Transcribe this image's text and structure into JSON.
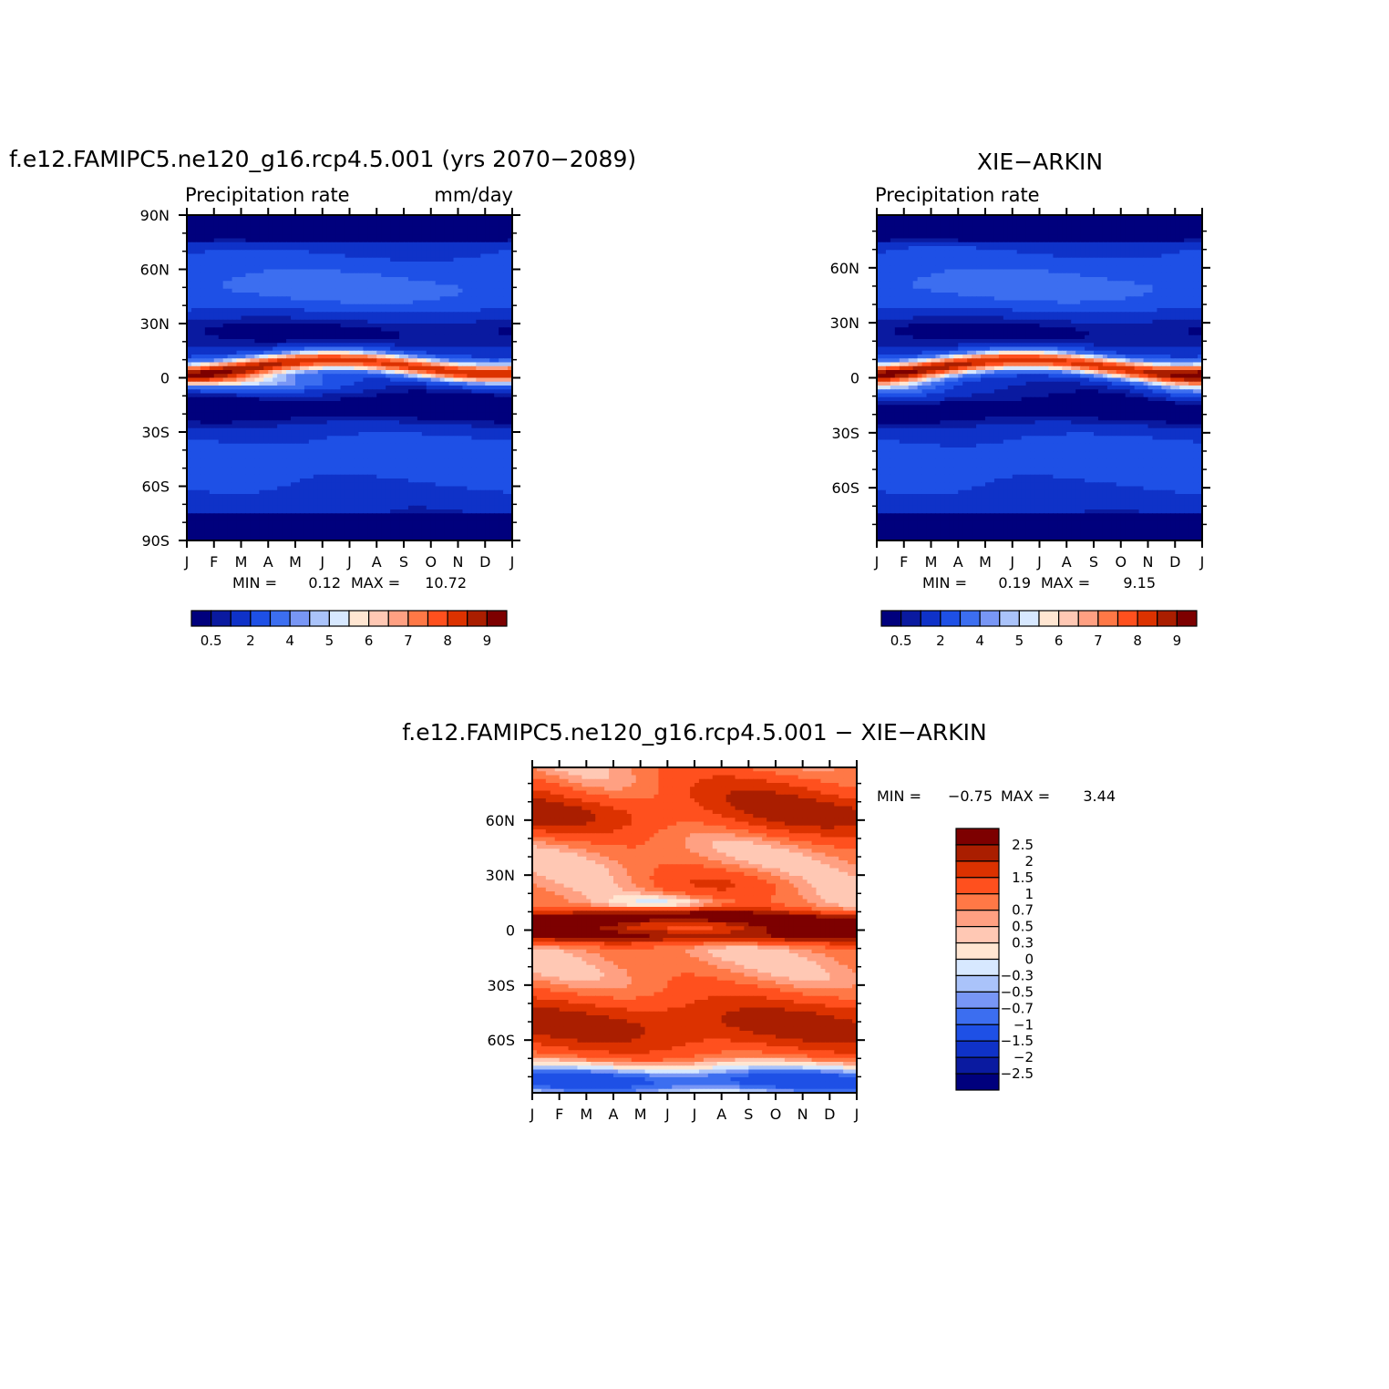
{
  "chart_data": [
    {
      "type": "heatmap",
      "title": "f.e12.FAMIPC5.ne120_g16.rcp4.5.001 (yrs 2070−2089)",
      "left_string": "Precipitation rate",
      "right_string": "mm/day",
      "x_tick_labels": [
        "J",
        "F",
        "M",
        "A",
        "M",
        "J",
        "J",
        "A",
        "S",
        "O",
        "N",
        "D",
        "J"
      ],
      "y_tick_labels": [
        "90N",
        "60N",
        "30N",
        "0",
        "30S",
        "60S",
        "90S"
      ],
      "y_tick_values": [
        90,
        60,
        30,
        0,
        -30,
        -60,
        -90
      ],
      "ylim": [
        -90,
        90
      ],
      "stats": {
        "min_label": "MIN =",
        "min": "0.12",
        "max_label": "MAX =",
        "max": "10.72"
      },
      "colorbar": {
        "labels": [
          "0.5",
          "2",
          "4",
          "5",
          "6",
          "7",
          "8",
          "9"
        ],
        "colors": [
          "#00007d",
          "#0a1aa0",
          "#0f32c8",
          "#1e50e6",
          "#3c6ef0",
          "#7896f5",
          "#aac3fa",
          "#d7e8ff",
          "#ffe6d2",
          "#ffc8b4",
          "#ffa082",
          "#ff7846",
          "#ff501e",
          "#dc3200",
          "#aa1e00",
          "#7d0000"
        ]
      }
    },
    {
      "type": "heatmap",
      "title": "XIE−ARKIN",
      "left_string": "Precipitation rate",
      "x_tick_labels": [
        "J",
        "F",
        "M",
        "A",
        "M",
        "J",
        "J",
        "A",
        "S",
        "O",
        "N",
        "D",
        "J"
      ],
      "y_tick_labels": [
        "60N",
        "30N",
        "0",
        "30S",
        "60S"
      ],
      "y_tick_values": [
        60,
        30,
        0,
        -30,
        -60
      ],
      "ylim": [
        -88.75,
        88.75
      ],
      "stats": {
        "min_label": "MIN =",
        "min": "0.19",
        "max_label": "MAX =",
        "max": "9.15"
      },
      "colorbar": {
        "labels": [
          "0.5",
          "2",
          "4",
          "5",
          "6",
          "7",
          "8",
          "9"
        ],
        "colors": [
          "#00007d",
          "#0a1aa0",
          "#0f32c8",
          "#1e50e6",
          "#3c6ef0",
          "#7896f5",
          "#aac3fa",
          "#d7e8ff",
          "#ffe6d2",
          "#ffc8b4",
          "#ffa082",
          "#ff7846",
          "#ff501e",
          "#dc3200",
          "#aa1e00",
          "#7d0000"
        ]
      }
    },
    {
      "type": "heatmap",
      "title": "f.e12.FAMIPC5.ne120_g16.rcp4.5.001 − XIE−ARKIN",
      "x_tick_labels": [
        "J",
        "F",
        "M",
        "A",
        "M",
        "J",
        "J",
        "A",
        "S",
        "O",
        "N",
        "D",
        "J"
      ],
      "y_tick_labels": [
        "60N",
        "30N",
        "0",
        "30S",
        "60S"
      ],
      "y_tick_values": [
        60,
        30,
        0,
        -30,
        -60
      ],
      "ylim": [
        -88.75,
        88.75
      ],
      "stats": {
        "min_label": "MIN =",
        "min": "−0.75",
        "max_label": "MAX =",
        "max": "3.44"
      },
      "colorbar": {
        "labels": [
          "2.5",
          "2",
          "1.5",
          "1",
          "0.7",
          "0.5",
          "0.3",
          "0",
          "−0.3",
          "−0.5",
          "−0.7",
          "−1",
          "−1.5",
          "−2",
          "−2.5"
        ],
        "colors": [
          "#7d0000",
          "#aa1e00",
          "#dc3200",
          "#ff501e",
          "#ff7846",
          "#ffa082",
          "#ffc8b4",
          "#ffe6d2",
          "#d7e8ff",
          "#aac3fa",
          "#7896f5",
          "#3c6ef0",
          "#1e50e6",
          "#0f32c8",
          "#0a1aa0",
          "#00007d"
        ]
      }
    }
  ]
}
